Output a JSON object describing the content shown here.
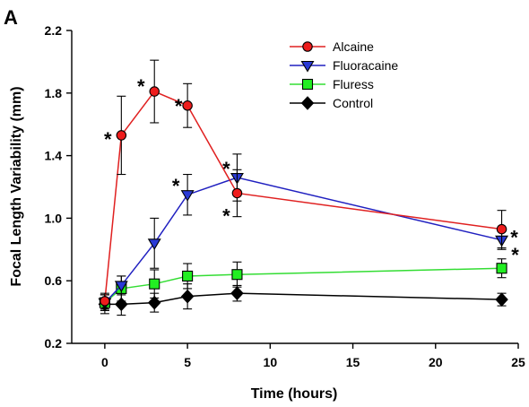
{
  "panel_label": "A",
  "chart_data": {
    "type": "line",
    "title": "",
    "xlabel": "Time (hours)",
    "ylabel": "Focal Length Variability (mm)",
    "xlim": [
      -2,
      25
    ],
    "ylim": [
      0.2,
      2.2
    ],
    "xticks": [
      0,
      5,
      10,
      15,
      20,
      25
    ],
    "yticks": [
      0.2,
      0.6,
      1.0,
      1.4,
      1.8,
      2.2
    ],
    "ytick_labels": [
      "0.2",
      "0.6",
      "1.0",
      "1.4",
      "1.8",
      "2.2"
    ],
    "grid": false,
    "legend_position": "top-right",
    "x": [
      0,
      1,
      3,
      5,
      8,
      24
    ],
    "series": [
      {
        "name": "Alcaine",
        "color": "#ee1c1c",
        "line_color": "#e02020",
        "marker": "circle",
        "values": [
          0.47,
          1.53,
          1.81,
          1.72,
          1.16,
          0.93
        ],
        "errors": [
          0.05,
          0.25,
          0.2,
          0.14,
          0.15,
          0.12
        ],
        "significant": [
          false,
          true,
          true,
          true,
          true,
          true
        ]
      },
      {
        "name": "Fluoracaine",
        "color": "#2a3ad6",
        "line_color": "#2020c0",
        "marker": "triangle-down",
        "values": [
          0.46,
          0.57,
          0.84,
          1.15,
          1.26,
          0.86
        ],
        "errors": [
          0.05,
          0.06,
          0.16,
          0.13,
          0.15,
          0.06
        ],
        "significant": [
          false,
          false,
          false,
          true,
          true,
          true
        ]
      },
      {
        "name": "Fluress",
        "color": "#22ee22",
        "line_color": "#33dd33",
        "marker": "square",
        "values": [
          0.46,
          0.55,
          0.58,
          0.63,
          0.64,
          0.68
        ],
        "errors": [
          0.05,
          0.08,
          0.09,
          0.08,
          0.08,
          0.06
        ],
        "significant": [
          false,
          false,
          false,
          false,
          false,
          false
        ]
      },
      {
        "name": "Control",
        "color": "#000000",
        "line_color": "#000000",
        "marker": "diamond",
        "values": [
          0.45,
          0.45,
          0.46,
          0.5,
          0.52,
          0.48
        ],
        "errors": [
          0.06,
          0.07,
          0.06,
          0.08,
          0.05,
          0.04
        ],
        "significant": [
          false,
          false,
          false,
          false,
          false,
          false
        ]
      }
    ],
    "significance_mark": "*"
  }
}
